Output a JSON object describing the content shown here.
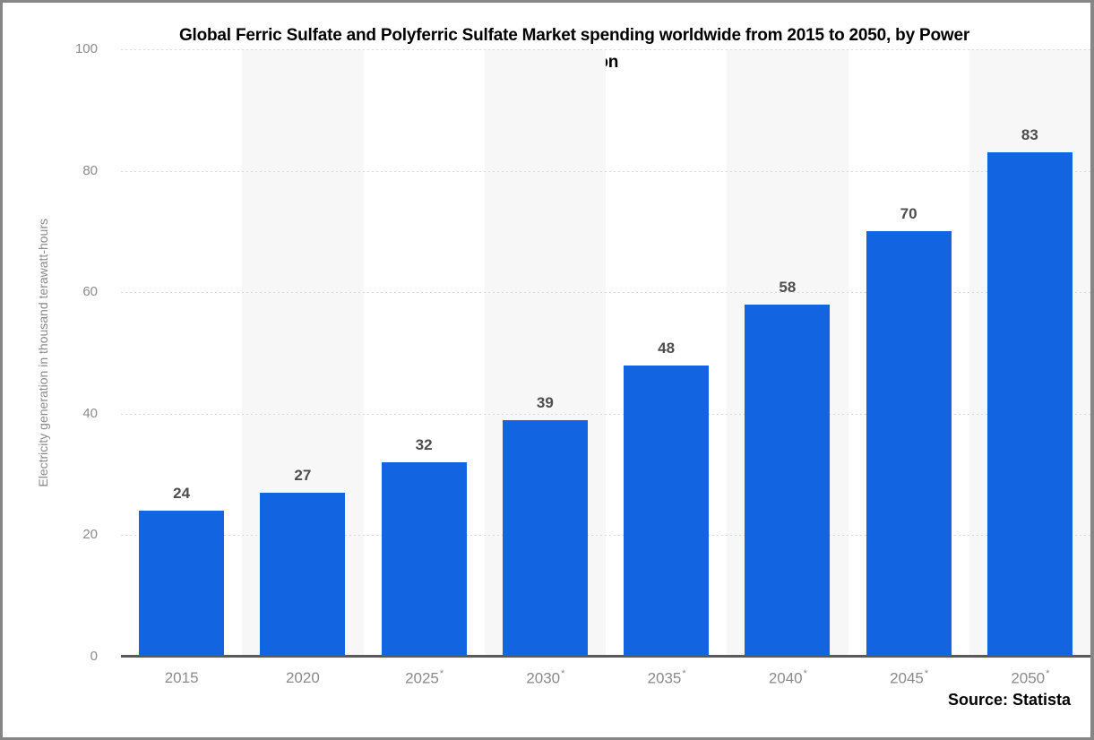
{
  "chart": {
    "title_lines": [
      "Global Ferric Sulfate and Polyferric Sulfate Market spending worldwide from 2015 to 2050, by Power",
      "Generation"
    ],
    "y_axis_title": "Electricity generation in thousand terawatt-hours",
    "source": "Source: Statista"
  },
  "chart_data": {
    "type": "bar",
    "title": "Global Ferric Sulfate and Polyferric Sulfate Market spending worldwide from 2015 to 2050, by Power Generation",
    "categories": [
      "2015",
      "2020",
      "2025*",
      "2030*",
      "2035*",
      "2040*",
      "2045*",
      "2050*"
    ],
    "values": [
      24,
      27,
      32,
      39,
      48,
      58,
      70,
      83
    ],
    "xlabel": "",
    "ylabel": "Electricity generation in thousand terawatt-hours",
    "ylim": [
      0,
      100
    ],
    "y_ticks": [
      0,
      20,
      40,
      60,
      80,
      100
    ],
    "grid": "horizontal-dotted",
    "legend": "none",
    "source": "Source: Statista",
    "colors": {
      "bar": "#1264e1",
      "band": "#f7f7f7",
      "gridline": "#d9d9d9",
      "axis_line": "#5a5a5a",
      "tick_text": "#8a8a8a",
      "value_text": "#4d4d4d",
      "title_text": "#000000"
    }
  }
}
